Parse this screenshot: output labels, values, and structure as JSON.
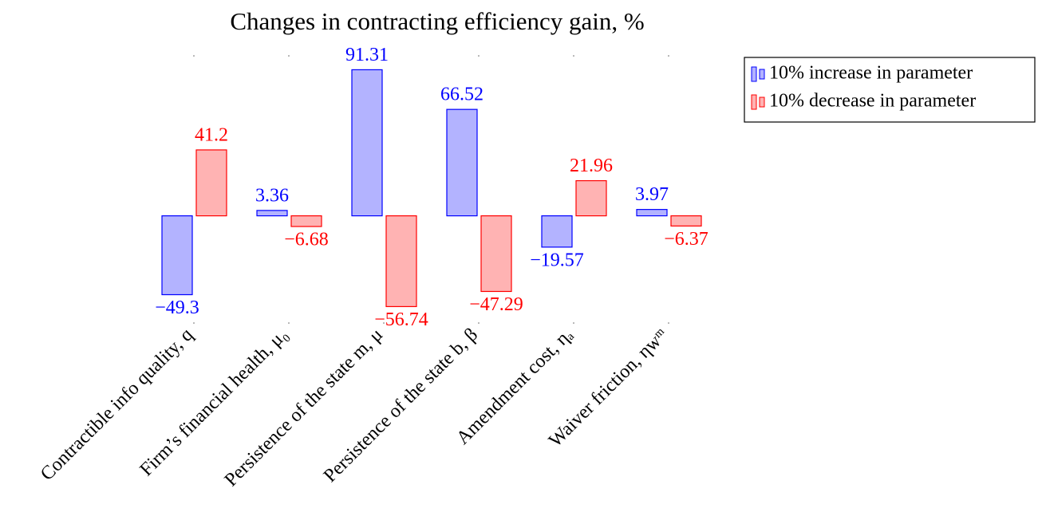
{
  "chart_data": {
    "type": "bar",
    "title": "Changes in contracting efficiency gain, %",
    "categories": [
      "Contractible info quality, q",
      "Firm’s financial health, μ₀",
      "Persistence of the state m, μ",
      "Persistence of the state b, β",
      "Amendment cost, ηₐ",
      "Waiver friction, ηwᵐ"
    ],
    "series": [
      {
        "name": "10% increase in parameter",
        "color": "#0000ff",
        "fill": "#b3b3ff",
        "values": [
          -49.3,
          3.36,
          91.31,
          66.52,
          -19.57,
          3.97
        ],
        "value_labels": [
          "−49.3",
          "3.36",
          "91.31",
          "66.52",
          "−19.57",
          "3.97"
        ]
      },
      {
        "name": "10% decrease in parameter",
        "color": "#ff0000",
        "fill": "#ffb3b3",
        "values": [
          41.2,
          -6.68,
          -56.74,
          -47.29,
          21.96,
          -6.37
        ],
        "value_labels": [
          "41.2",
          "−6.68",
          "−56.74",
          "−47.29",
          "21.96",
          "−6.37"
        ]
      }
    ],
    "ylim": [
      -67,
      100
    ],
    "legend": "upper right outside"
  }
}
